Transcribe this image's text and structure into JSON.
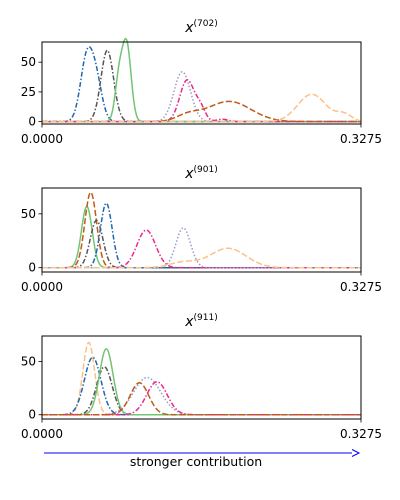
{
  "chart_data": [
    {
      "type": "line",
      "title": "x",
      "title_sup": "(702)",
      "xlim": [
        0.0,
        0.3275
      ],
      "x_ticks": [
        "0.0000",
        "0.3275"
      ],
      "ylim": [
        -2,
        67
      ],
      "y_ticks": [
        0,
        25,
        50
      ],
      "grid": false,
      "series": [
        {
          "color": "#2166ac",
          "dash": "dashdot",
          "peaks": [
            {
              "center": 0.046,
              "sigma": 0.0065,
              "height": 53
            },
            {
              "center": 0.056,
              "sigma": 0.006,
              "height": 30
            }
          ]
        },
        {
          "color": "#555555",
          "dash": "dashdot",
          "peaks": [
            {
              "center": 0.067,
              "sigma": 0.0065,
              "height": 60
            }
          ]
        },
        {
          "color": "#74c476",
          "dash": "solid",
          "peaks": [
            {
              "center": 0.087,
              "sigma": 0.0045,
              "height": 64
            },
            {
              "center": 0.079,
              "sigma": 0.004,
              "height": 35
            }
          ]
        },
        {
          "color": "#9e9ac8",
          "dash": "dotted",
          "peaks": [
            {
              "center": 0.144,
              "sigma": 0.0085,
              "height": 42
            }
          ]
        },
        {
          "color": "#e7298a",
          "dash": "dashdot",
          "peaks": [
            {
              "center": 0.149,
              "sigma": 0.0075,
              "height": 35
            },
            {
              "center": 0.163,
              "sigma": 0.005,
              "height": 10
            },
            {
              "center": 0.185,
              "sigma": 0.006,
              "height": 2
            }
          ]
        },
        {
          "color": "#bf5b17",
          "dash": "dashed",
          "peaks": [
            {
              "center": 0.192,
              "sigma": 0.0225,
              "height": 17
            },
            {
              "center": 0.15,
              "sigma": 0.012,
              "height": 5
            }
          ]
        },
        {
          "color": "#fdc086",
          "dash": "dashed",
          "peaks": [
            {
              "center": 0.277,
              "sigma": 0.0145,
              "height": 23
            },
            {
              "center": 0.31,
              "sigma": 0.008,
              "height": 6
            }
          ]
        }
      ]
    },
    {
      "type": "line",
      "title": "x",
      "title_sup": "(901)",
      "xlim": [
        0.0,
        0.3275
      ],
      "x_ticks": [
        "0.0000",
        "0.3275"
      ],
      "ylim": [
        -4,
        74
      ],
      "y_ticks": [
        0,
        50
      ],
      "grid": false,
      "series": [
        {
          "color": "#74c476",
          "dash": "solid",
          "peaks": [
            {
              "center": 0.046,
              "sigma": 0.0055,
              "height": 57
            }
          ]
        },
        {
          "color": "#bf5b17",
          "dash": "dashed",
          "peaks": [
            {
              "center": 0.05,
              "sigma": 0.006,
              "height": 70
            }
          ]
        },
        {
          "color": "#555555",
          "dash": "dashdot",
          "peaks": [
            {
              "center": 0.056,
              "sigma": 0.0065,
              "height": 44
            }
          ]
        },
        {
          "color": "#2166ac",
          "dash": "dashdot",
          "peaks": [
            {
              "center": 0.066,
              "sigma": 0.006,
              "height": 60
            }
          ]
        },
        {
          "color": "#e7298a",
          "dash": "dashdot",
          "peaks": [
            {
              "center": 0.107,
              "sigma": 0.0095,
              "height": 35
            }
          ]
        },
        {
          "color": "#9e9ac8",
          "dash": "dotted",
          "peaks": [
            {
              "center": 0.145,
              "sigma": 0.0075,
              "height": 37
            }
          ]
        },
        {
          "color": "#fdc086",
          "dash": "dashed",
          "peaks": [
            {
              "center": 0.191,
              "sigma": 0.0185,
              "height": 18
            },
            {
              "center": 0.145,
              "sigma": 0.014,
              "height": 5
            }
          ]
        }
      ]
    },
    {
      "type": "line",
      "title": "x",
      "title_sup": "(911)",
      "xlim": [
        0.0,
        0.3275
      ],
      "x_ticks": [
        "0.0000",
        "0.3275"
      ],
      "ylim": [
        -4,
        74
      ],
      "y_ticks": [
        0,
        50
      ],
      "grid": false,
      "series": [
        {
          "color": "#fdc086",
          "dash": "dashed",
          "peaks": [
            {
              "center": 0.048,
              "sigma": 0.006,
              "height": 68
            }
          ]
        },
        {
          "color": "#2166ac",
          "dash": "dashdot",
          "peaks": [
            {
              "center": 0.052,
              "sigma": 0.0085,
              "height": 54
            }
          ]
        },
        {
          "color": "#555555",
          "dash": "dashdot",
          "peaks": [
            {
              "center": 0.064,
              "sigma": 0.008,
              "height": 45
            }
          ]
        },
        {
          "color": "#74c476",
          "dash": "solid",
          "peaks": [
            {
              "center": 0.066,
              "sigma": 0.007,
              "height": 62
            }
          ]
        },
        {
          "color": "#9e9ac8",
          "dash": "dotted",
          "peaks": [
            {
              "center": 0.108,
              "sigma": 0.014,
              "height": 35
            }
          ]
        },
        {
          "color": "#e7298a",
          "dash": "dashdot",
          "peaks": [
            {
              "center": 0.118,
              "sigma": 0.0105,
              "height": 31
            }
          ]
        },
        {
          "color": "#bf5b17",
          "dash": "dashed",
          "peaks": [
            {
              "center": 0.1,
              "sigma": 0.0095,
              "height": 30
            }
          ]
        }
      ]
    }
  ],
  "arrow": {
    "label": "stronger contribution",
    "color": "#0000ff"
  }
}
